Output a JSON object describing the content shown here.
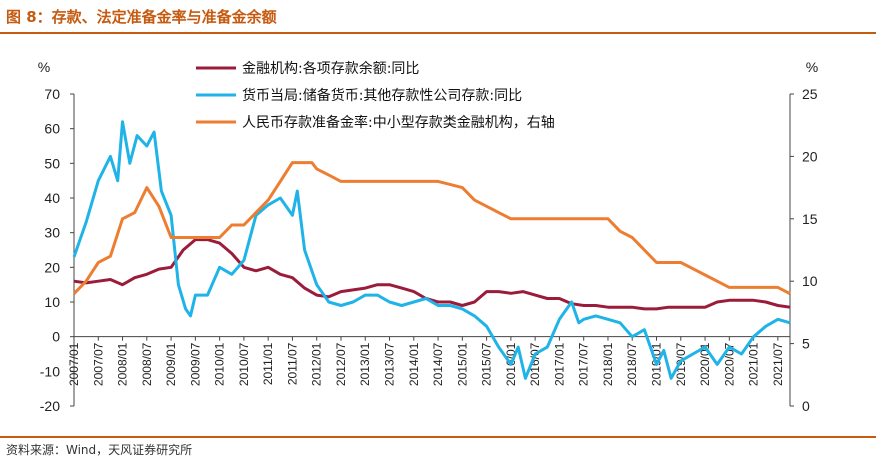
{
  "header": {
    "title": "图 8：存款、法定准备金率与准备金余额"
  },
  "footer": {
    "source": "资料来源：Wind，天风证券研究所"
  },
  "chart_data": {
    "type": "line",
    "title": "",
    "ylabel_left": "%",
    "ylabel_right": "%",
    "ylim_left": [
      -20,
      70
    ],
    "yticks_left": [
      -20,
      -10,
      0,
      10,
      20,
      30,
      40,
      50,
      60,
      70
    ],
    "ylim_right": [
      0,
      25
    ],
    "yticks_right": [
      0,
      5,
      10,
      15,
      20,
      25
    ],
    "x_categories": [
      "2007/01",
      "2007/07",
      "2008/01",
      "2008/07",
      "2009/01",
      "2009/07",
      "2010/01",
      "2010/07",
      "2011/01",
      "2011/07",
      "2012/01",
      "2012/07",
      "2013/01",
      "2013/07",
      "2014/01",
      "2014/07",
      "2015/01",
      "2015/07",
      "2016/01",
      "2016/07",
      "2017/01",
      "2017/07",
      "2018/01",
      "2018/07",
      "2019/01",
      "2019/07",
      "2020/01",
      "2020/07",
      "2021/01",
      "2021/07"
    ],
    "x_range": [
      2007.0,
      2021.75
    ],
    "legend_position": "top-center",
    "series": [
      {
        "name": "金融机构:各项存款余额:同比",
        "color": "#9b1c3a",
        "axis": "left",
        "points": [
          [
            2007.0,
            16
          ],
          [
            2007.25,
            15.5
          ],
          [
            2007.5,
            16
          ],
          [
            2007.75,
            16.5
          ],
          [
            2008.0,
            15
          ],
          [
            2008.25,
            17
          ],
          [
            2008.5,
            18
          ],
          [
            2008.75,
            19.5
          ],
          [
            2009.0,
            20
          ],
          [
            2009.25,
            25
          ],
          [
            2009.5,
            28
          ],
          [
            2009.75,
            28
          ],
          [
            2010.0,
            27
          ],
          [
            2010.25,
            24
          ],
          [
            2010.5,
            20
          ],
          [
            2010.75,
            19
          ],
          [
            2011.0,
            20
          ],
          [
            2011.25,
            18
          ],
          [
            2011.5,
            17
          ],
          [
            2011.75,
            14
          ],
          [
            2012.0,
            12
          ],
          [
            2012.25,
            11.5
          ],
          [
            2012.5,
            13
          ],
          [
            2012.75,
            13.5
          ],
          [
            2013.0,
            14
          ],
          [
            2013.25,
            15
          ],
          [
            2013.5,
            15
          ],
          [
            2013.75,
            14
          ],
          [
            2014.0,
            13
          ],
          [
            2014.25,
            11
          ],
          [
            2014.5,
            10
          ],
          [
            2014.75,
            10
          ],
          [
            2015.0,
            9
          ],
          [
            2015.25,
            10
          ],
          [
            2015.5,
            13
          ],
          [
            2015.75,
            13
          ],
          [
            2016.0,
            12.5
          ],
          [
            2016.25,
            13
          ],
          [
            2016.5,
            12
          ],
          [
            2016.75,
            11
          ],
          [
            2017.0,
            11
          ],
          [
            2017.25,
            9.5
          ],
          [
            2017.5,
            9
          ],
          [
            2017.75,
            9
          ],
          [
            2018.0,
            8.5
          ],
          [
            2018.25,
            8.5
          ],
          [
            2018.5,
            8.5
          ],
          [
            2018.75,
            8
          ],
          [
            2019.0,
            8
          ],
          [
            2019.25,
            8.5
          ],
          [
            2019.5,
            8.5
          ],
          [
            2019.75,
            8.5
          ],
          [
            2020.0,
            8.5
          ],
          [
            2020.25,
            10
          ],
          [
            2020.5,
            10.5
          ],
          [
            2020.75,
            10.5
          ],
          [
            2021.0,
            10.5
          ],
          [
            2021.25,
            10
          ],
          [
            2021.5,
            9
          ],
          [
            2021.75,
            8.5
          ]
        ]
      },
      {
        "name": "货币当局:储备货币:其他存款性公司存款:同比",
        "color": "#1fb3e8",
        "axis": "left",
        "points": [
          [
            2007.0,
            23
          ],
          [
            2007.25,
            33
          ],
          [
            2007.5,
            45
          ],
          [
            2007.75,
            52
          ],
          [
            2007.9,
            45
          ],
          [
            2008.0,
            62
          ],
          [
            2008.15,
            50
          ],
          [
            2008.3,
            58
          ],
          [
            2008.5,
            55
          ],
          [
            2008.65,
            59
          ],
          [
            2008.8,
            42
          ],
          [
            2009.0,
            35
          ],
          [
            2009.15,
            15
          ],
          [
            2009.3,
            8
          ],
          [
            2009.4,
            6
          ],
          [
            2009.5,
            12
          ],
          [
            2009.75,
            12
          ],
          [
            2010.0,
            20
          ],
          [
            2010.25,
            18
          ],
          [
            2010.5,
            22
          ],
          [
            2010.75,
            35
          ],
          [
            2011.0,
            38
          ],
          [
            2011.25,
            40
          ],
          [
            2011.4,
            37
          ],
          [
            2011.5,
            35
          ],
          [
            2011.6,
            42
          ],
          [
            2011.75,
            25
          ],
          [
            2012.0,
            15
          ],
          [
            2012.25,
            10
          ],
          [
            2012.5,
            9
          ],
          [
            2012.75,
            10
          ],
          [
            2013.0,
            12
          ],
          [
            2013.25,
            12
          ],
          [
            2013.5,
            10
          ],
          [
            2013.75,
            9
          ],
          [
            2014.0,
            10
          ],
          [
            2014.25,
            11
          ],
          [
            2014.5,
            9
          ],
          [
            2014.75,
            9
          ],
          [
            2015.0,
            8
          ],
          [
            2015.25,
            6
          ],
          [
            2015.5,
            3
          ],
          [
            2015.75,
            -3
          ],
          [
            2016.0,
            -8
          ],
          [
            2016.15,
            -3
          ],
          [
            2016.3,
            -12
          ],
          [
            2016.5,
            -5
          ],
          [
            2016.75,
            -3
          ],
          [
            2017.0,
            5
          ],
          [
            2017.25,
            10
          ],
          [
            2017.4,
            4
          ],
          [
            2017.5,
            5
          ],
          [
            2017.75,
            6
          ],
          [
            2018.0,
            5
          ],
          [
            2018.25,
            4
          ],
          [
            2018.5,
            0
          ],
          [
            2018.75,
            2
          ],
          [
            2019.0,
            -8
          ],
          [
            2019.15,
            -4
          ],
          [
            2019.3,
            -12
          ],
          [
            2019.5,
            -7
          ],
          [
            2019.75,
            -5
          ],
          [
            2020.0,
            -3
          ],
          [
            2020.25,
            -8
          ],
          [
            2020.5,
            -3
          ],
          [
            2020.75,
            -5
          ],
          [
            2021.0,
            0
          ],
          [
            2021.25,
            3
          ],
          [
            2021.5,
            5
          ],
          [
            2021.75,
            4
          ]
        ]
      },
      {
        "name": "人民币存款准备金率:中小型存款类金融机构，右轴",
        "color": "#ed7d31",
        "axis": "right",
        "points": [
          [
            2007.0,
            9
          ],
          [
            2007.25,
            10
          ],
          [
            2007.5,
            11.5
          ],
          [
            2007.75,
            12
          ],
          [
            2008.0,
            15
          ],
          [
            2008.25,
            15.5
          ],
          [
            2008.5,
            17.5
          ],
          [
            2008.75,
            16
          ],
          [
            2009.0,
            13.5
          ],
          [
            2009.5,
            13.5
          ],
          [
            2010.0,
            13.5
          ],
          [
            2010.25,
            14.5
          ],
          [
            2010.5,
            14.5
          ],
          [
            2010.75,
            15.5
          ],
          [
            2011.0,
            16.5
          ],
          [
            2011.25,
            18
          ],
          [
            2011.5,
            19.5
          ],
          [
            2011.9,
            19.5
          ],
          [
            2012.0,
            19
          ],
          [
            2012.25,
            18.5
          ],
          [
            2012.5,
            18
          ],
          [
            2013.0,
            18
          ],
          [
            2014.0,
            18
          ],
          [
            2014.5,
            18
          ],
          [
            2015.0,
            17.5
          ],
          [
            2015.25,
            16.5
          ],
          [
            2015.5,
            16
          ],
          [
            2015.75,
            15.5
          ],
          [
            2016.0,
            15
          ],
          [
            2016.25,
            15
          ],
          [
            2017.0,
            15
          ],
          [
            2018.0,
            15
          ],
          [
            2018.25,
            14
          ],
          [
            2018.5,
            13.5
          ],
          [
            2018.75,
            12.5
          ],
          [
            2019.0,
            11.5
          ],
          [
            2019.5,
            11.5
          ],
          [
            2019.75,
            11
          ],
          [
            2020.0,
            10.5
          ],
          [
            2020.25,
            10
          ],
          [
            2020.5,
            9.5
          ],
          [
            2021.0,
            9.5
          ],
          [
            2021.5,
            9.5
          ],
          [
            2021.75,
            9
          ]
        ]
      }
    ]
  }
}
